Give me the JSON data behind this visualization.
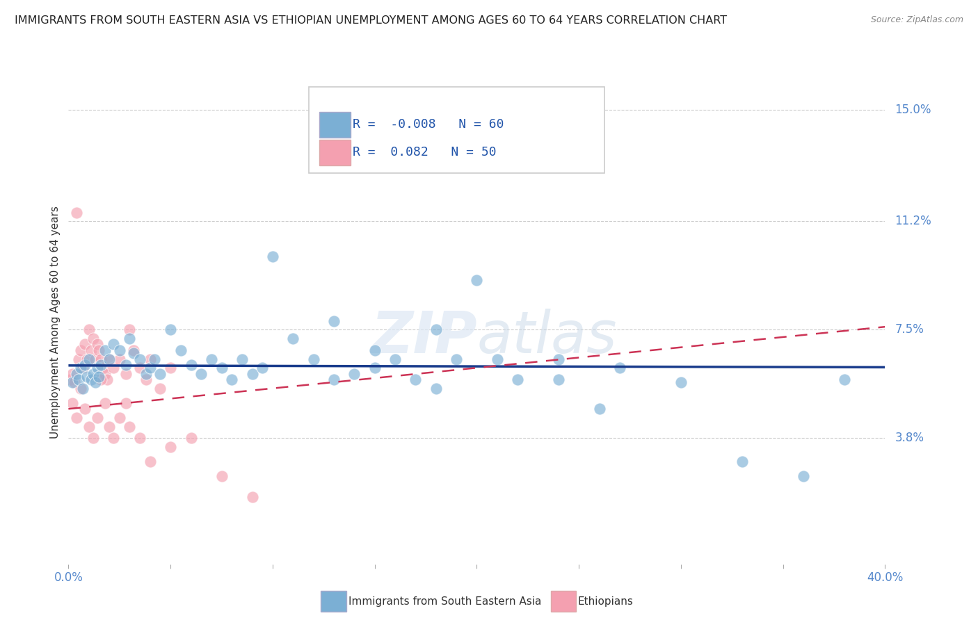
{
  "title": "IMMIGRANTS FROM SOUTH EASTERN ASIA VS ETHIOPIAN UNEMPLOYMENT AMONG AGES 60 TO 64 YEARS CORRELATION CHART",
  "source": "Source: ZipAtlas.com",
  "ylabel": "Unemployment Among Ages 60 to 64 years",
  "xlim": [
    0.0,
    0.4
  ],
  "ylim": [
    -0.005,
    0.16
  ],
  "ytick_vals": [
    0.038,
    0.075,
    0.112,
    0.15
  ],
  "ytick_labels": [
    "3.8%",
    "7.5%",
    "11.2%",
    "15.0%"
  ],
  "grid_color": "#cccccc",
  "background_color": "#ffffff",
  "blue_color": "#7bafd4",
  "blue_edge": "#5588bb",
  "pink_color": "#f4a0b0",
  "pink_edge": "#dd7788",
  "blue_trend_color": "#1a3c8c",
  "pink_trend_color": "#cc3355",
  "blue_label": "Immigrants from South Eastern Asia",
  "pink_label": "Ethiopians",
  "R_blue": -0.008,
  "N_blue": 60,
  "R_pink": 0.082,
  "N_pink": 50,
  "blue_scatter_x": [
    0.002,
    0.004,
    0.005,
    0.006,
    0.007,
    0.008,
    0.009,
    0.01,
    0.011,
    0.012,
    0.013,
    0.014,
    0.015,
    0.016,
    0.018,
    0.02,
    0.022,
    0.025,
    0.028,
    0.03,
    0.032,
    0.035,
    0.038,
    0.04,
    0.042,
    0.045,
    0.05,
    0.055,
    0.06,
    0.065,
    0.07,
    0.075,
    0.08,
    0.085,
    0.09,
    0.095,
    0.1,
    0.11,
    0.12,
    0.13,
    0.14,
    0.15,
    0.16,
    0.17,
    0.18,
    0.19,
    0.2,
    0.22,
    0.24,
    0.26,
    0.13,
    0.15,
    0.18,
    0.21,
    0.24,
    0.27,
    0.3,
    0.33,
    0.36,
    0.38
  ],
  "blue_scatter_y": [
    0.057,
    0.06,
    0.058,
    0.062,
    0.055,
    0.063,
    0.059,
    0.065,
    0.058,
    0.06,
    0.057,
    0.062,
    0.059,
    0.063,
    0.068,
    0.065,
    0.07,
    0.068,
    0.063,
    0.072,
    0.067,
    0.065,
    0.06,
    0.062,
    0.065,
    0.06,
    0.075,
    0.068,
    0.063,
    0.06,
    0.065,
    0.062,
    0.058,
    0.065,
    0.06,
    0.062,
    0.1,
    0.072,
    0.065,
    0.058,
    0.06,
    0.062,
    0.065,
    0.058,
    0.055,
    0.065,
    0.092,
    0.058,
    0.065,
    0.048,
    0.078,
    0.068,
    0.075,
    0.065,
    0.058,
    0.062,
    0.057,
    0.03,
    0.025,
    0.058
  ],
  "pink_scatter_x": [
    0.001,
    0.002,
    0.003,
    0.004,
    0.005,
    0.006,
    0.007,
    0.008,
    0.009,
    0.01,
    0.011,
    0.012,
    0.013,
    0.014,
    0.015,
    0.016,
    0.017,
    0.018,
    0.019,
    0.02,
    0.022,
    0.025,
    0.028,
    0.03,
    0.032,
    0.035,
    0.038,
    0.04,
    0.045,
    0.05,
    0.002,
    0.004,
    0.006,
    0.008,
    0.01,
    0.012,
    0.014,
    0.016,
    0.018,
    0.02,
    0.022,
    0.025,
    0.028,
    0.03,
    0.035,
    0.04,
    0.05,
    0.06,
    0.075,
    0.09
  ],
  "pink_scatter_y": [
    0.058,
    0.06,
    0.057,
    0.115,
    0.065,
    0.068,
    0.062,
    0.07,
    0.065,
    0.075,
    0.068,
    0.072,
    0.065,
    0.07,
    0.068,
    0.065,
    0.062,
    0.06,
    0.058,
    0.065,
    0.062,
    0.065,
    0.06,
    0.075,
    0.068,
    0.062,
    0.058,
    0.065,
    0.055,
    0.062,
    0.05,
    0.045,
    0.055,
    0.048,
    0.042,
    0.038,
    0.045,
    0.058,
    0.05,
    0.042,
    0.038,
    0.045,
    0.05,
    0.042,
    0.038,
    0.03,
    0.035,
    0.038,
    0.025,
    0.018
  ],
  "blue_trend_y_start": 0.0628,
  "blue_trend_y_end": 0.0622,
  "pink_trend_y_start": 0.048,
  "pink_trend_y_end": 0.076
}
